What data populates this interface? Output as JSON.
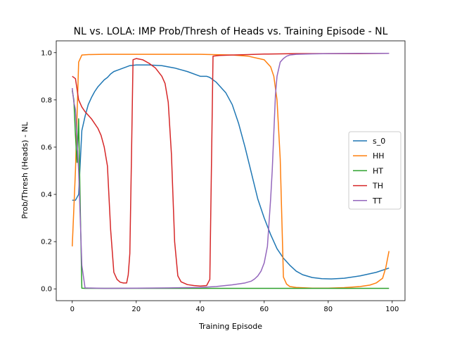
{
  "chart_data": {
    "type": "line",
    "title": "NL vs. LOLA: IMP Prob/Thresh of Heads vs. Training Episode - NL",
    "xlabel": "Training Episode",
    "ylabel": "Prob/Thresh (Heads) - NL",
    "xlim": [
      -5,
      104
    ],
    "ylim": [
      -0.05,
      1.05
    ],
    "xticks": [
      "0",
      "20",
      "40",
      "60",
      "80",
      "100"
    ],
    "yticks": [
      "0.0",
      "0.2",
      "0.4",
      "0.6",
      "0.8",
      "1.0"
    ],
    "grid": false,
    "legend_position": "right",
    "series": [
      {
        "name": "s_0",
        "color": "#1f77b4",
        "x": [
          0,
          1,
          2,
          3,
          4,
          5,
          6,
          7,
          8,
          9,
          10,
          11,
          12,
          13,
          14,
          16,
          18,
          20,
          24,
          28,
          32,
          36,
          40,
          42,
          43,
          45,
          48,
          50,
          52,
          54,
          56,
          58,
          60,
          62,
          64,
          66,
          68,
          70,
          72,
          75,
          78,
          81,
          85,
          90,
          95,
          99
        ],
        "y": [
          0.375,
          0.375,
          0.4,
          0.67,
          0.73,
          0.78,
          0.81,
          0.835,
          0.855,
          0.87,
          0.885,
          0.895,
          0.91,
          0.92,
          0.925,
          0.935,
          0.945,
          0.948,
          0.948,
          0.945,
          0.935,
          0.92,
          0.9,
          0.9,
          0.895,
          0.875,
          0.83,
          0.78,
          0.7,
          0.6,
          0.49,
          0.38,
          0.3,
          0.23,
          0.17,
          0.13,
          0.1,
          0.075,
          0.06,
          0.048,
          0.043,
          0.042,
          0.045,
          0.055,
          0.07,
          0.088
        ]
      },
      {
        "name": "HH",
        "color": "#ff7f0e",
        "x": [
          0,
          1,
          2,
          3,
          5,
          10,
          20,
          30,
          40,
          50,
          55,
          60,
          62,
          63,
          64,
          65,
          65.5,
          66,
          67,
          68,
          70,
          75,
          80,
          85,
          90,
          93,
          95,
          97,
          98,
          99
        ],
        "y": [
          0.18,
          0.5,
          0.96,
          0.99,
          0.992,
          0.993,
          0.993,
          0.993,
          0.993,
          0.99,
          0.985,
          0.97,
          0.94,
          0.9,
          0.8,
          0.55,
          0.3,
          0.05,
          0.02,
          0.01,
          0.006,
          0.003,
          0.003,
          0.005,
          0.01,
          0.016,
          0.025,
          0.045,
          0.09,
          0.16
        ]
      },
      {
        "name": "HT",
        "color": "#2ca02c",
        "x": [
          0,
          0.5,
          1,
          1.5,
          2,
          2.5,
          3,
          4,
          10,
          20,
          40,
          60,
          80,
          99
        ],
        "y": [
          0.84,
          0.8,
          0.65,
          0.535,
          0.72,
          0.35,
          0.003,
          0.002,
          0.002,
          0.002,
          0.002,
          0.002,
          0.002,
          0.002
        ]
      },
      {
        "name": "TH",
        "color": "#d62728",
        "x": [
          0,
          1,
          2,
          3,
          4,
          6,
          8,
          9,
          10,
          11,
          12,
          13,
          14,
          15,
          16,
          17,
          17.5,
          18,
          18.5,
          19,
          20,
          22,
          24,
          26,
          28,
          29,
          30,
          31,
          32,
          33,
          34,
          36,
          38,
          40,
          42,
          43,
          44,
          46,
          50,
          55,
          60,
          65,
          70,
          80,
          90,
          99
        ],
        "y": [
          0.9,
          0.89,
          0.8,
          0.77,
          0.75,
          0.72,
          0.68,
          0.65,
          0.6,
          0.52,
          0.25,
          0.07,
          0.04,
          0.028,
          0.025,
          0.025,
          0.06,
          0.15,
          0.55,
          0.97,
          0.975,
          0.97,
          0.955,
          0.935,
          0.9,
          0.87,
          0.79,
          0.57,
          0.2,
          0.055,
          0.03,
          0.018,
          0.014,
          0.012,
          0.014,
          0.04,
          0.985,
          0.988,
          0.99,
          0.992,
          0.994,
          0.995,
          0.996,
          0.996,
          0.996,
          0.997
        ]
      },
      {
        "name": "TT",
        "color": "#9467bd",
        "x": [
          0,
          0.5,
          1,
          2,
          2.5,
          3,
          4,
          10,
          20,
          30,
          40,
          45,
          50,
          54,
          56,
          57,
          58,
          59,
          60,
          61,
          62,
          62.5,
          63,
          63.5,
          64,
          65,
          66,
          67,
          68,
          70,
          75,
          80,
          90,
          99
        ],
        "y": [
          0.85,
          0.79,
          0.76,
          0.5,
          0.3,
          0.1,
          0.004,
          0.002,
          0.003,
          0.004,
          0.006,
          0.01,
          0.017,
          0.025,
          0.033,
          0.042,
          0.055,
          0.075,
          0.11,
          0.18,
          0.38,
          0.5,
          0.66,
          0.82,
          0.9,
          0.96,
          0.975,
          0.985,
          0.99,
          0.993,
          0.995,
          0.996,
          0.997,
          0.997
        ]
      }
    ]
  }
}
